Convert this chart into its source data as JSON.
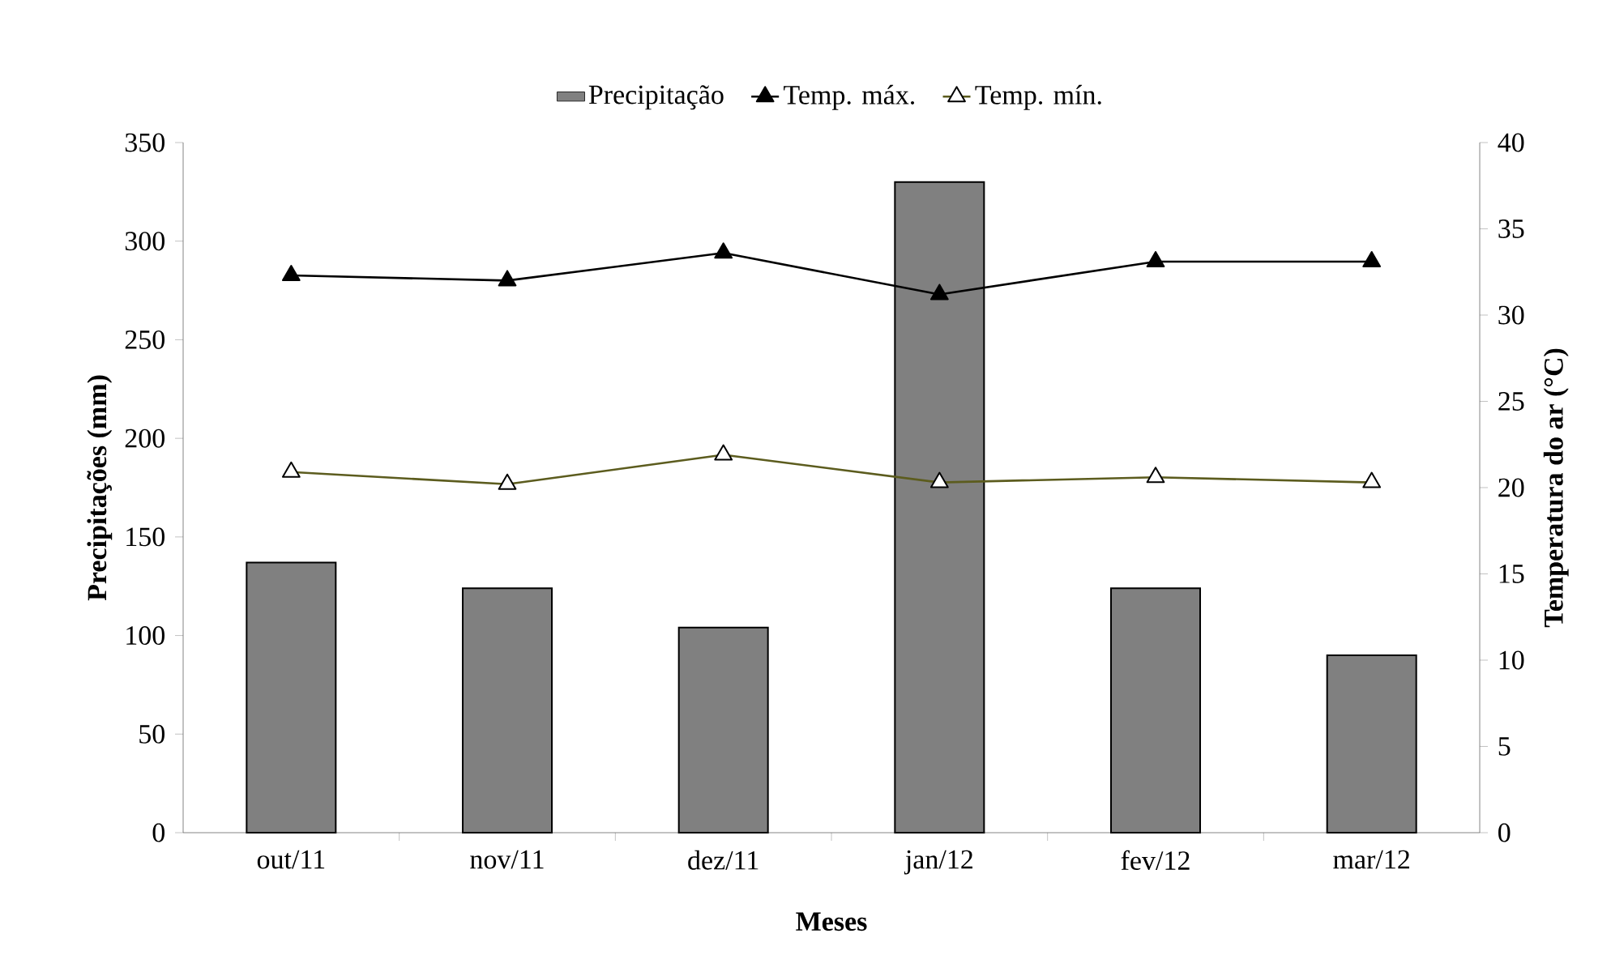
{
  "chart_data": {
    "type": "bar",
    "xlabel": "Meses",
    "ylabel": "Precipitações (mm)",
    "y2label": "Temperatura do ar (°C)",
    "categories": [
      "out/11",
      "nov/11",
      "dez/11",
      "jan/12",
      "fev/12",
      "mar/12"
    ],
    "series": [
      {
        "name": "Precipitação",
        "color": "#808080",
        "values": [
          137,
          124,
          104,
          330,
          124,
          90
        ]
      },
      {
        "name": "Temp. máx.",
        "type": "line",
        "axis": "y2",
        "marker": "triangle",
        "color": "#000000",
        "values": [
          32.3,
          32.0,
          33.6,
          31.2,
          33.1,
          33.1
        ]
      },
      {
        "name": "Temp. mín.",
        "type": "line",
        "axis": "y2",
        "marker": "triangle",
        "color": "#5c5c1e",
        "values": [
          20.9,
          20.2,
          21.9,
          20.3,
          20.6,
          20.3
        ]
      }
    ],
    "ylim": [
      0,
      350
    ],
    "yticks": [
      0,
      50,
      100,
      150,
      200,
      250,
      300,
      350
    ],
    "y2lim": [
      0,
      40
    ],
    "y2ticks": [
      0,
      5,
      10,
      15,
      20,
      25,
      30,
      35,
      40
    ],
    "grid": false,
    "legend": "top"
  }
}
